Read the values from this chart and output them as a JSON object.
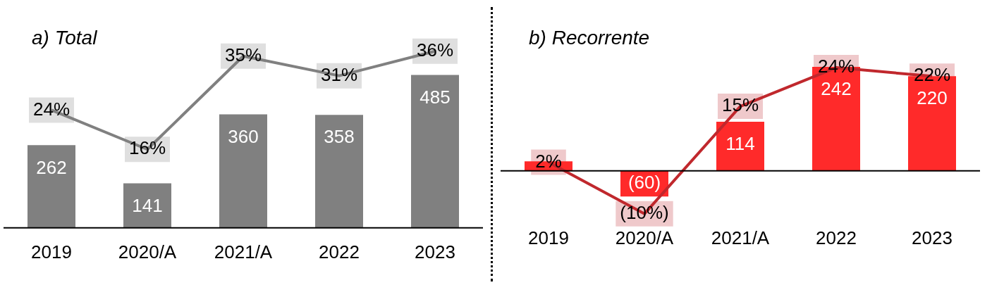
{
  "chart_data": [
    {
      "type": "bar",
      "title": "a) Total",
      "categories": [
        "2019",
        "2020/A",
        "2021/A",
        "2022",
        "2023"
      ],
      "ylim": [
        0,
        700
      ],
      "y2lim": [
        0,
        45
      ],
      "tick_labels": "x",
      "legend": false,
      "marker": "none",
      "line_style": "solid",
      "series": [
        {
          "type": "bar",
          "color": "#808080",
          "values": [
            262,
            141,
            360,
            358,
            485
          ],
          "value_labels": [
            "262",
            "141",
            "360",
            "358",
            "485"
          ]
        },
        {
          "type": "line",
          "axis": "y2",
          "color": "#808080",
          "values": [
            24,
            16,
            35,
            31,
            36
          ],
          "value_labels": [
            "24%",
            "16%",
            "35%",
            "31%",
            "36%"
          ]
        }
      ]
    },
    {
      "type": "bar",
      "title": "b) Recorrente",
      "categories": [
        "2019",
        "2020/A",
        "2021/A",
        "2022",
        "2023"
      ],
      "tick_labels": "x",
      "legend": false,
      "marker": "none",
      "line_style": "solid",
      "series": [
        {
          "type": "bar",
          "color": "#ff2a2a",
          "values": [
            22,
            -60,
            114,
            242,
            220
          ],
          "value_labels": [
            null,
            "(60)",
            "114",
            "242",
            "220"
          ]
        },
        {
          "type": "line",
          "axis": "y2",
          "color": "#c0282d",
          "values": [
            2,
            -10,
            15,
            24,
            22
          ],
          "value_labels": [
            "2%",
            "(10%)",
            "15%",
            "24%",
            "22%"
          ]
        }
      ]
    }
  ]
}
